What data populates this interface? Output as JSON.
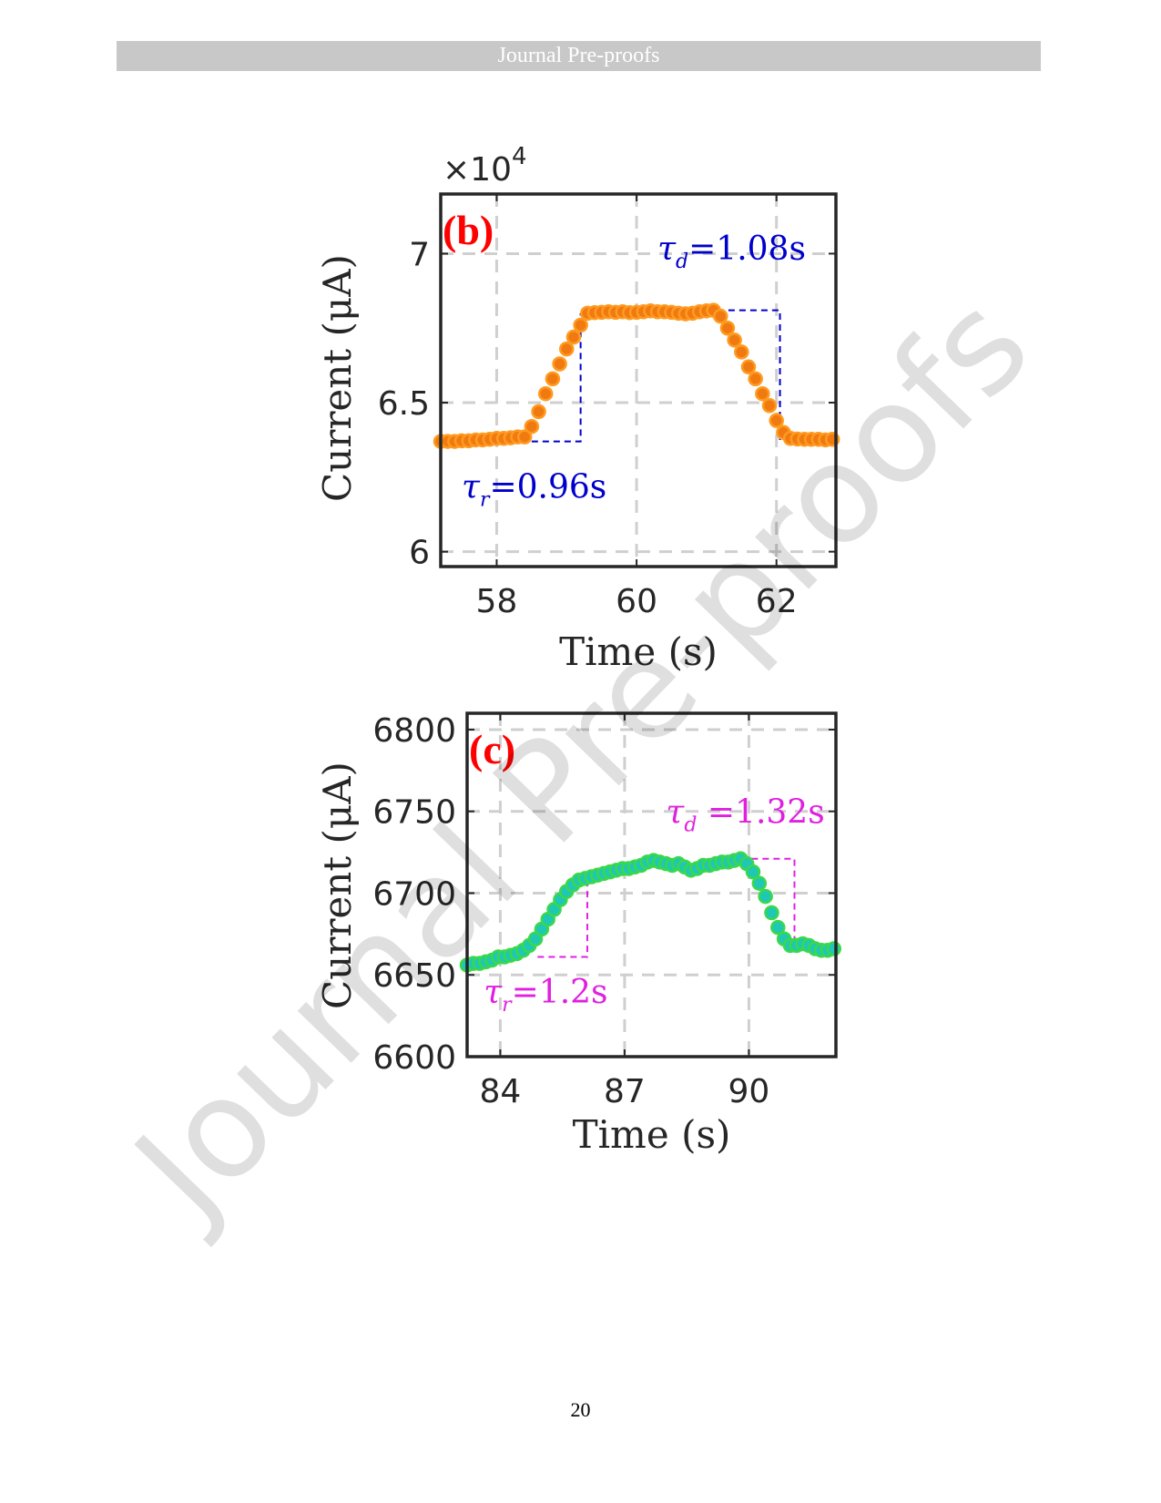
{
  "header": {
    "title": "Journal Pre-proofs"
  },
  "watermark": "Journal Pre-proofs",
  "page_number": "20",
  "chart_data": [
    {
      "type": "scatter",
      "panel_label": "(b)",
      "xlabel": "Time (s)",
      "ylabel": "Current (μA)",
      "y_exponent_label": "×10",
      "y_exponent": "4",
      "xlim": [
        57.2,
        62.85
      ],
      "ylim": [
        5.95,
        7.2
      ],
      "xticks": [
        58,
        60,
        62
      ],
      "yticks": [
        6,
        6.5,
        7
      ],
      "xtick_labels": [
        "58",
        "60",
        "62"
      ],
      "ytick_labels": [
        "6",
        "6.5",
        "7"
      ],
      "grid": true,
      "marker_color": "#f07a10",
      "marker_edge": "#ff9a20",
      "annotation_color": "#0000cc",
      "annotations": [
        {
          "sym": "τ",
          "sub": "d",
          "text": "=1.08s",
          "x": 60.3,
          "y": 6.98
        },
        {
          "sym": "τ",
          "sub": "r",
          "text": "=0.96s",
          "x": 57.5,
          "y": 6.18
        }
      ],
      "rise_box": {
        "x0": 58.5,
        "x1": 59.2,
        "y_low": 6.37,
        "y_high": 6.8
      },
      "decay_box": {
        "x0": 61.0,
        "x1": 62.05,
        "y_low": 6.37,
        "y_high": 6.81
      },
      "x": [
        57.2,
        57.3,
        57.4,
        57.5,
        57.6,
        57.7,
        57.8,
        57.9,
        58.0,
        58.1,
        58.2,
        58.3,
        58.4,
        58.5,
        58.6,
        58.7,
        58.8,
        58.9,
        59.0,
        59.1,
        59.2,
        59.3,
        59.4,
        59.5,
        59.6,
        59.7,
        59.8,
        59.9,
        60.0,
        60.1,
        60.2,
        60.3,
        60.4,
        60.5,
        60.6,
        60.7,
        60.8,
        60.9,
        61.0,
        61.1,
        61.2,
        61.3,
        61.4,
        61.5,
        61.6,
        61.7,
        61.8,
        61.9,
        62.0,
        62.1,
        62.2,
        62.3,
        62.4,
        62.5,
        62.6,
        62.7,
        62.8
      ],
      "y": [
        6.37,
        6.37,
        6.37,
        6.372,
        6.372,
        6.375,
        6.375,
        6.377,
        6.38,
        6.38,
        6.382,
        6.385,
        6.385,
        6.42,
        6.47,
        6.53,
        6.58,
        6.63,
        6.68,
        6.72,
        6.76,
        6.8,
        6.802,
        6.803,
        6.805,
        6.803,
        6.805,
        6.802,
        6.803,
        6.805,
        6.808,
        6.805,
        6.805,
        6.803,
        6.8,
        6.798,
        6.8,
        6.805,
        6.808,
        6.81,
        6.79,
        6.75,
        6.71,
        6.67,
        6.62,
        6.58,
        6.53,
        6.49,
        6.44,
        6.4,
        6.38,
        6.378,
        6.377,
        6.377,
        6.377,
        6.375,
        6.377
      ]
    },
    {
      "type": "scatter",
      "panel_label": "(c)",
      "xlabel": "Time (s)",
      "ylabel": "Current (μA)",
      "xlim": [
        83.2,
        92.1
      ],
      "ylim": [
        6600,
        6810
      ],
      "xticks": [
        84,
        87,
        90
      ],
      "yticks": [
        6600,
        6650,
        6700,
        6750,
        6800
      ],
      "xtick_labels": [
        "84",
        "87",
        "90"
      ],
      "ytick_labels": [
        "6600",
        "6650",
        "6700",
        "6750",
        "6800"
      ],
      "grid": true,
      "marker_color": "#1ec8b4",
      "marker_edge": "#3ad84a",
      "annotation_color": "#e020e0",
      "annotations": [
        {
          "sym": "τ",
          "sub": "d",
          "text": " =1.32s",
          "x": 88.0,
          "y": 6743
        },
        {
          "sym": "τ",
          "sub": "r",
          "text": "=1.2s",
          "x": 83.6,
          "y": 6633
        }
      ],
      "rise_box": {
        "x0": 84.9,
        "x1": 86.1,
        "y_low": 6661,
        "y_high": 6708
      },
      "decay_box": {
        "x0": 89.8,
        "x1": 91.1,
        "y_low": 6667,
        "y_high": 6721
      },
      "x": [
        83.2,
        83.35,
        83.5,
        83.65,
        83.8,
        83.95,
        84.1,
        84.25,
        84.4,
        84.55,
        84.7,
        84.85,
        85.0,
        85.15,
        85.3,
        85.45,
        85.6,
        85.75,
        85.9,
        86.05,
        86.2,
        86.35,
        86.5,
        86.65,
        86.8,
        86.95,
        87.1,
        87.25,
        87.4,
        87.55,
        87.7,
        87.85,
        88.0,
        88.15,
        88.3,
        88.45,
        88.6,
        88.75,
        88.9,
        89.05,
        89.2,
        89.35,
        89.5,
        89.65,
        89.8,
        89.95,
        90.1,
        90.25,
        90.4,
        90.55,
        90.7,
        90.85,
        91.0,
        91.15,
        91.3,
        91.45,
        91.6,
        91.75,
        91.9,
        92.05
      ],
      "y": [
        6656,
        6657,
        6657,
        6658,
        6659,
        6661,
        6661,
        6662,
        6663,
        6665,
        6668,
        6672,
        6678,
        6684,
        6690,
        6696,
        6701,
        6705,
        6708,
        6709,
        6710,
        6711,
        6712,
        6713,
        6714,
        6715,
        6715,
        6716,
        6717,
        6719,
        6720,
        6719,
        6718,
        6717,
        6718,
        6716,
        6714,
        6715,
        6717,
        6717,
        6718,
        6719,
        6719,
        6720,
        6721,
        6718,
        6713,
        6706,
        6698,
        6688,
        6679,
        6672,
        6668,
        6668,
        6669,
        6668,
        6666,
        6665,
        6665,
        6666
      ]
    }
  ]
}
